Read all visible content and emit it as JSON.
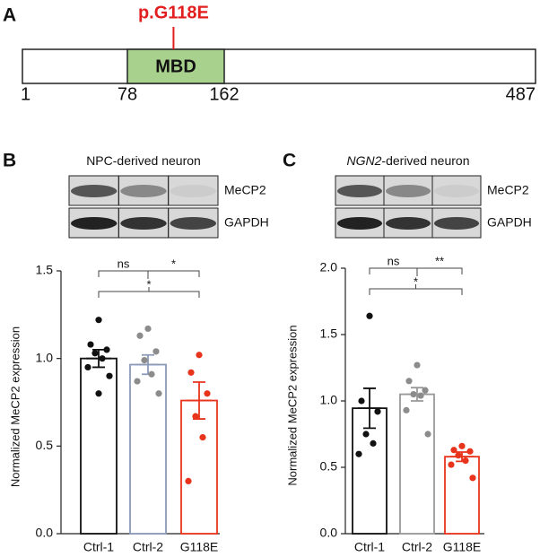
{
  "panel_a": {
    "label": "A",
    "ticks": [
      1,
      78,
      162,
      487
    ],
    "domain": {
      "name": "MBD",
      "start": 78,
      "end": 162,
      "color": "#a9d18e"
    },
    "mutation": {
      "label": "p.G118E",
      "position": 118,
      "color": "#e31e1e"
    }
  },
  "chart_data": [
    {
      "type": "bar",
      "panel": "B",
      "blot_title": "NPC-derived neuron",
      "blot_bands": [
        "MeCP2",
        "GAPDH"
      ],
      "y_label": "Normalized MeCP2 expression",
      "categories": [
        "Ctrl-1",
        "Ctrl-2",
        "G118E"
      ],
      "values": [
        1.0,
        0.965,
        0.76
      ],
      "errors": [
        0.05,
        0.055,
        0.105
      ],
      "colors": [
        "#111111",
        "#8a9ab8",
        "#e8341c"
      ],
      "point_colors": [
        "#111111",
        "#8c8c8c",
        "#e8341c"
      ],
      "points": [
        [
          1.22,
          1.08,
          1.05,
          1.03,
          1.0,
          0.95,
          0.9,
          0.8
        ],
        [
          1.17,
          1.13,
          1.04,
          0.99,
          0.91,
          0.87,
          0.8
        ],
        [
          1.02,
          0.92,
          0.8,
          0.67,
          0.55,
          0.3
        ]
      ],
      "ylim": [
        0,
        1.5
      ],
      "yticks": [
        {
          "value": 0,
          "label": "0.0"
        },
        0.5,
        {
          "value": 1,
          "label": "1.0"
        },
        1.5
      ],
      "comparisons": [
        {
          "pair": [
            0,
            1
          ],
          "label": "ns",
          "level": 0
        },
        {
          "pair": [
            1,
            2
          ],
          "label": "*",
          "level": 0
        },
        {
          "pair": [
            0,
            2
          ],
          "label": "*",
          "level": 1
        }
      ]
    },
    {
      "type": "bar",
      "panel": "C",
      "blot_title_italic": "NGN2",
      "blot_title": "-derived neuron",
      "blot_bands": [
        "MeCP2",
        "GAPDH"
      ],
      "y_label": "Normalized MeCP2 expression",
      "categories": [
        "Ctrl-1",
        "Ctrl-2",
        "G118E"
      ],
      "values": [
        0.945,
        1.05,
        0.58
      ],
      "errors": [
        0.15,
        0.05,
        0.035
      ],
      "colors": [
        "#111111",
        "#999999",
        "#e8341c"
      ],
      "point_colors": [
        "#111111",
        "#8c8c8c",
        "#e8341c"
      ],
      "points": [
        [
          1.64,
          1.0,
          0.92,
          0.75,
          0.68,
          0.6
        ],
        [
          1.27,
          1.15,
          1.08,
          1.05,
          1.04,
          0.93,
          0.75
        ],
        [
          0.66,
          0.63,
          0.62,
          0.59,
          0.55,
          0.52,
          0.42
        ]
      ],
      "ylim": [
        0,
        2
      ],
      "yticks": [
        {
          "value": 0,
          "label": "0.0"
        },
        0.5,
        {
          "value": 1,
          "label": "1.0"
        },
        1.5,
        {
          "value": 2,
          "label": "2.0"
        }
      ],
      "comparisons": [
        {
          "pair": [
            0,
            1
          ],
          "label": "ns",
          "level": 0
        },
        {
          "pair": [
            1,
            2
          ],
          "label": "**",
          "level": 0
        },
        {
          "pair": [
            0,
            2
          ],
          "label": "*",
          "level": 1
        }
      ]
    }
  ]
}
